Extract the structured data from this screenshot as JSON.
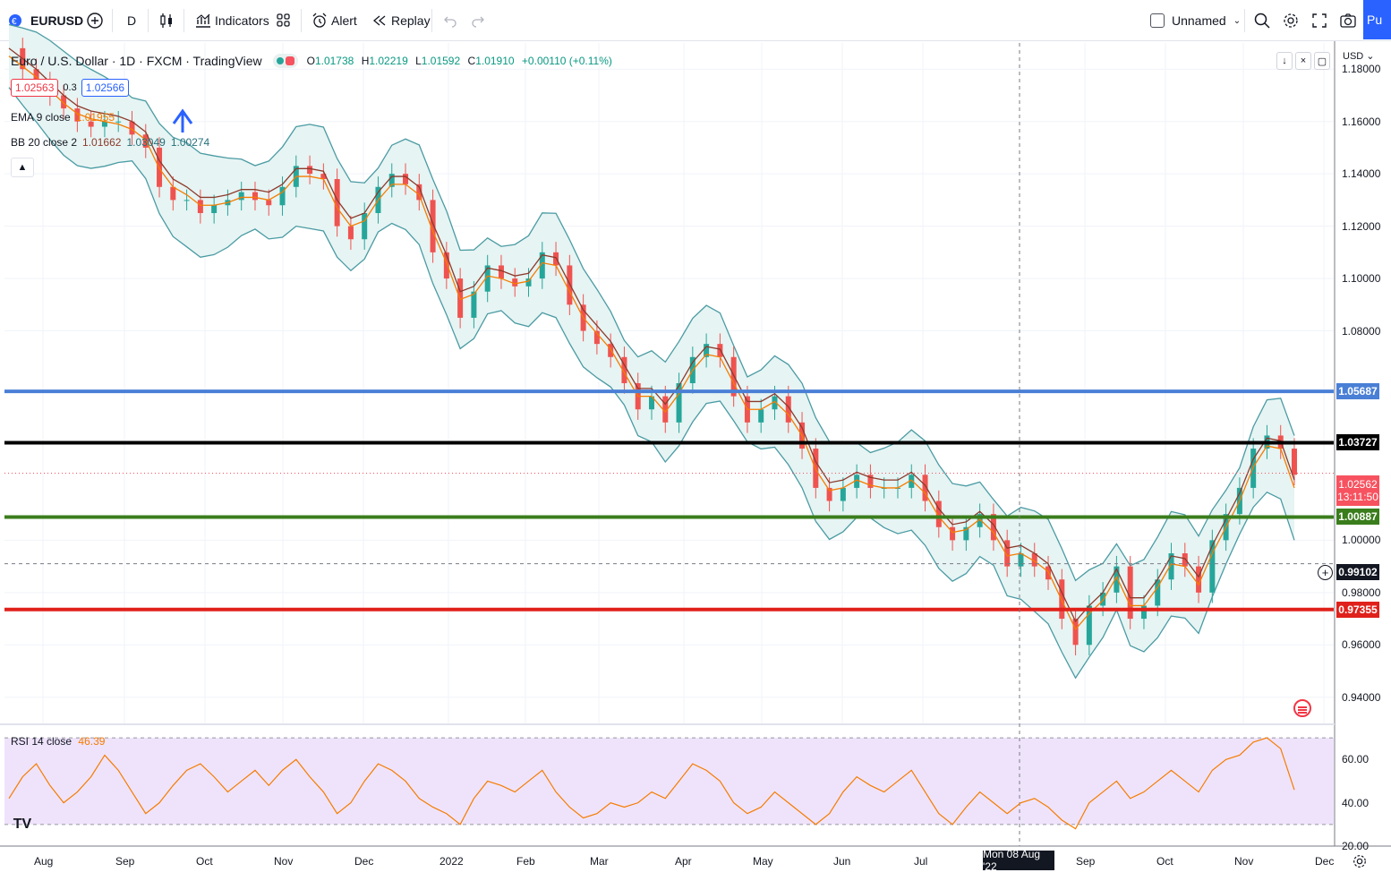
{
  "toolbar": {
    "symbol": "EURUSD",
    "interval": "D",
    "indicators_label": "Indicators",
    "alert_label": "Alert",
    "replay_label": "Replay",
    "layout_name": "Unnamed",
    "publish_label": "Pu"
  },
  "legend": {
    "title": "Euro / U.S. Dollar · 1D · FXCM · TradingView",
    "open_label": "O",
    "open": "1.01738",
    "high_label": "H",
    "high": "1.02219",
    "low_label": "L",
    "low": "1.01592",
    "close_label": "C",
    "close": "1.01910",
    "change": "+0.00110 (+0.11%)",
    "sell_price": "1.02563",
    "spread": "0.3",
    "buy_price": "1.02566",
    "ema_name": "EMA 9 close",
    "ema_value": "1.01955",
    "bb_name": "BB 20 close 2",
    "bb_basis": "1.01662",
    "bb_upper": "1.03049",
    "bb_lower": "1.00274"
  },
  "rsi": {
    "name": "RSI 14 close",
    "value": "46.39"
  },
  "price_scale": {
    "currency": "USD",
    "ticks": [
      "1.18000",
      "1.16000",
      "1.14000",
      "1.12000",
      "1.10000",
      "1.08000",
      "1.00000",
      "0.98000",
      "0.96000",
      "0.94000"
    ],
    "rsi_ticks": [
      "60.00",
      "40.00",
      "20.00"
    ]
  },
  "levels": [
    {
      "name": "blue",
      "price": 1.05687,
      "label": "1.05687",
      "color": "#4a7fd6"
    },
    {
      "name": "black",
      "price": 1.03727,
      "label": "1.03727",
      "color": "#000000"
    },
    {
      "name": "green",
      "price": 1.00887,
      "label": "1.00887",
      "color": "#3a7d1c"
    },
    {
      "name": "red",
      "price": 0.97355,
      "label": "0.97355",
      "color": "#e0211b"
    }
  ],
  "current_price": {
    "label": "1.02562",
    "countdown": "13:11:50"
  },
  "crosshair_price": "0.99102",
  "time_axis": {
    "labels": [
      "Aug",
      "Sep",
      "Oct",
      "Nov",
      "Dec",
      "2022",
      "Feb",
      "Mar",
      "Apr",
      "May",
      "Jun",
      "Jul",
      "Sep",
      "Oct",
      "Nov",
      "Dec"
    ],
    "crosshair_date": "Mon 08 Aug '22"
  },
  "chart_data": {
    "type": "line",
    "title": "Euro / U.S. Dollar · 1D · FXCM · TradingView",
    "series": [
      {
        "name": "EURUSD",
        "values": [
          1.188,
          1.18,
          1.175,
          1.17,
          1.165,
          1.16,
          1.158,
          1.16,
          1.16,
          1.155,
          1.15,
          1.135,
          1.13,
          1.13,
          1.125,
          1.128,
          1.13,
          1.133,
          1.13,
          1.128,
          1.135,
          1.143,
          1.14,
          1.138,
          1.12,
          1.115,
          1.125,
          1.135,
          1.14,
          1.136,
          1.13,
          1.11,
          1.1,
          1.085,
          1.095,
          1.105,
          1.1,
          1.097,
          1.1,
          1.11,
          1.105,
          1.09,
          1.08,
          1.075,
          1.07,
          1.06,
          1.05,
          1.055,
          1.045,
          1.06,
          1.07,
          1.075,
          1.07,
          1.055,
          1.045,
          1.05,
          1.055,
          1.045,
          1.035,
          1.02,
          1.015,
          1.02,
          1.025,
          1.02,
          1.02,
          1.02,
          1.025,
          1.015,
          1.005,
          1.0,
          1.005,
          1.01,
          1.0,
          0.99,
          0.995,
          0.99,
          0.985,
          0.97,
          0.96,
          0.975,
          0.98,
          0.99,
          0.97,
          0.975,
          0.985,
          0.995,
          0.99,
          0.98,
          1.0,
          1.01,
          1.02,
          1.035,
          1.04,
          1.035,
          1.025
        ]
      },
      {
        "name": "EMA 9 close",
        "values": [
          1.185,
          1.181,
          1.177,
          1.172,
          1.167,
          1.163,
          1.161,
          1.16,
          1.159,
          1.157,
          1.153,
          1.142,
          1.135,
          1.132,
          1.128,
          1.128,
          1.129,
          1.131,
          1.131,
          1.13,
          1.133,
          1.139,
          1.139,
          1.138,
          1.127,
          1.12,
          1.122,
          1.13,
          1.136,
          1.136,
          1.132,
          1.118,
          1.106,
          1.092,
          1.094,
          1.101,
          1.1,
          1.098,
          1.099,
          1.106,
          1.105,
          1.095,
          1.085,
          1.079,
          1.073,
          1.064,
          1.055,
          1.055,
          1.049,
          1.056,
          1.065,
          1.071,
          1.07,
          1.06,
          1.05,
          1.05,
          1.053,
          1.048,
          1.04,
          1.027,
          1.019,
          1.02,
          1.023,
          1.021,
          1.02,
          1.02,
          1.023,
          1.018,
          1.009,
          1.003,
          1.004,
          1.008,
          1.003,
          0.994,
          0.995,
          0.992,
          0.988,
          0.977,
          0.966,
          0.972,
          0.977,
          0.986,
          0.975,
          0.975,
          0.982,
          0.991,
          0.99,
          0.983,
          0.995,
          1.005,
          1.015,
          1.028,
          1.036,
          1.035,
          1.02
        ]
      },
      {
        "name": "RSI 14 close",
        "values": [
          42,
          52,
          58,
          48,
          40,
          45,
          52,
          62,
          55,
          45,
          35,
          40,
          48,
          55,
          58,
          52,
          45,
          50,
          55,
          48,
          55,
          60,
          52,
          45,
          35,
          40,
          50,
          58,
          55,
          50,
          42,
          38,
          35,
          30,
          42,
          50,
          48,
          45,
          50,
          55,
          45,
          38,
          33,
          35,
          40,
          38,
          40,
          45,
          42,
          50,
          58,
          55,
          50,
          40,
          35,
          38,
          45,
          40,
          35,
          30,
          35,
          45,
          52,
          48,
          45,
          50,
          55,
          45,
          35,
          30,
          38,
          45,
          40,
          35,
          40,
          42,
          38,
          32,
          28,
          40,
          45,
          50,
          42,
          45,
          50,
          55,
          50,
          45,
          55,
          60,
          62,
          68,
          70,
          65,
          46
        ]
      }
    ],
    "ylim": [
      0.93,
      1.19
    ],
    "rsi_ylim": [
      20,
      75
    ],
    "rsi_band": [
      30,
      70
    ],
    "x_start_label": "Aug",
    "x_end_label": "Nov"
  }
}
